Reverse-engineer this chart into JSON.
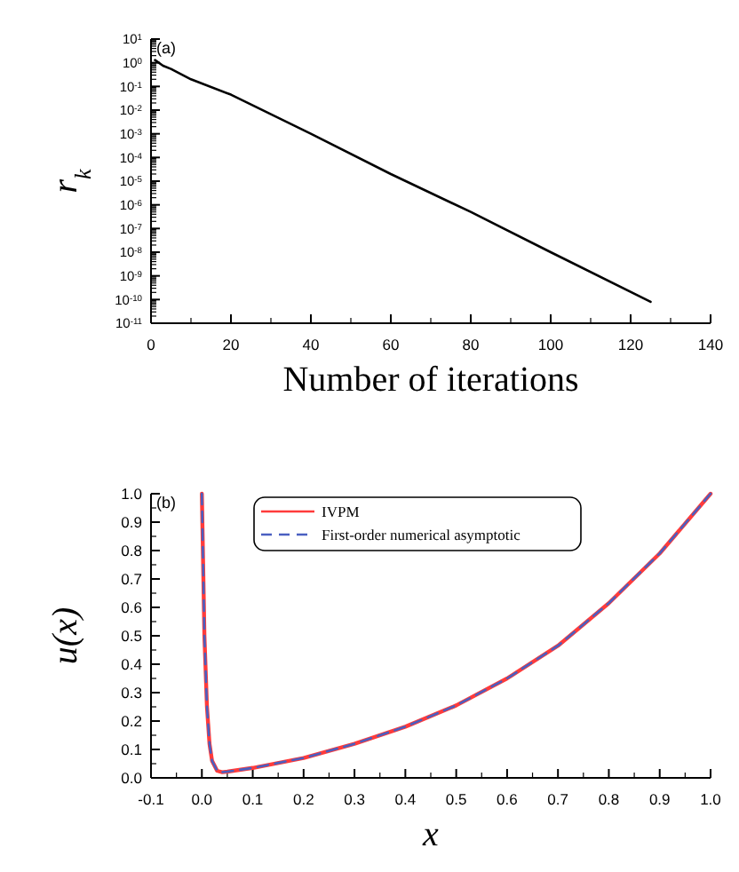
{
  "chart_data": [
    {
      "type": "line",
      "annotations": [
        "(a)"
      ],
      "ylabel": "r$_{k}$",
      "xlabel": "Number of iterations",
      "log": "y",
      "grid": false,
      "legend": false,
      "xlim": [
        0,
        140
      ],
      "xticks": [
        0,
        20,
        40,
        60,
        80,
        100,
        120,
        140
      ],
      "ylim": [
        1e-11,
        10
      ],
      "yticks": [
        {
          "value": 10,
          "label": "10$^{1}$"
        },
        {
          "value": 1,
          "label": "10$^{0}$"
        },
        {
          "value": 0.1,
          "label": "10$^{-1}$"
        },
        {
          "value": 0.01,
          "label": "10$^{-2}$"
        },
        {
          "value": 0.001,
          "label": "10$^{-3}$"
        },
        {
          "value": 0.0001,
          "label": "10$^{-4}$"
        },
        {
          "value": 1e-05,
          "label": "10$^{-5}$"
        },
        {
          "value": 1e-06,
          "label": "10$^{-6}$"
        },
        {
          "value": 1e-07,
          "label": "10$^{-7}$"
        },
        {
          "value": 1e-08,
          "label": "10$^{-8}$"
        },
        {
          "value": 1e-09,
          "label": "10$^{-9}$"
        },
        {
          "value": 1e-10,
          "label": "10$^{-10}$"
        },
        {
          "value": 1e-11,
          "label": "10$^{-11}$"
        }
      ],
      "x": [
        1,
        3,
        5,
        10,
        20,
        40,
        60,
        80,
        100,
        125
      ],
      "series": [
        {
          "color": "#000000",
          "line_style": "solid",
          "values": [
            1.3,
            0.75,
            0.55,
            0.2,
            0.045,
            0.001,
            2e-05,
            5e-07,
            1e-08,
            8e-11
          ]
        }
      ]
    },
    {
      "type": "line",
      "annotations": [
        "(b)"
      ],
      "ylabel": "u(x)",
      "xlabel": "x",
      "grid": false,
      "legend": "top",
      "xlim": [
        -0.1,
        1.0
      ],
      "xticks": [
        -0.1,
        {
          "value": 0,
          "label": "0.0"
        },
        0.1,
        0.2,
        0.3,
        0.4,
        0.5,
        0.6,
        0.7,
        0.8,
        0.9,
        {
          "value": 1,
          "label": "1.0"
        }
      ],
      "ylim": [
        0,
        1.0
      ],
      "yticks": [
        {
          "value": 0,
          "label": "0.0"
        },
        0.1,
        0.2,
        0.3,
        0.4,
        0.5,
        0.6,
        0.7,
        0.8,
        0.9,
        {
          "value": 1,
          "label": "1.0"
        }
      ],
      "x": [
        0,
        0.003,
        0.005,
        0.01,
        0.015,
        0.02,
        0.03,
        0.04,
        0.05,
        0.1,
        0.2,
        0.3,
        0.4,
        0.5,
        0.6,
        0.7,
        0.8,
        0.9,
        1.0
      ],
      "series": [
        {
          "name": "IVPM",
          "color": "#ff3b3b",
          "line_style": "solid",
          "values": [
            1.0,
            0.7,
            0.5,
            0.25,
            0.12,
            0.06,
            0.025,
            0.02,
            0.022,
            0.035,
            0.07,
            0.12,
            0.18,
            0.255,
            0.35,
            0.465,
            0.615,
            0.79,
            1.0
          ]
        },
        {
          "name": "First-order numerical asymptotic",
          "color": "#4a5fc1",
          "line_style": "dashed",
          "values": [
            1.0,
            0.7,
            0.5,
            0.25,
            0.12,
            0.06,
            0.025,
            0.02,
            0.022,
            0.035,
            0.07,
            0.12,
            0.18,
            0.255,
            0.35,
            0.465,
            0.615,
            0.79,
            1.0
          ]
        }
      ]
    }
  ]
}
